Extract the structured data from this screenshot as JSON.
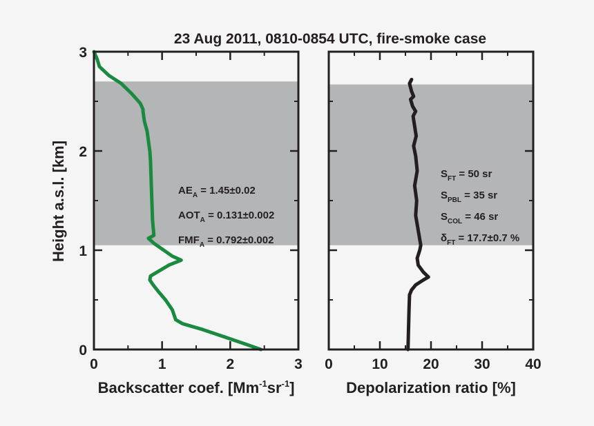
{
  "title": "23 Aug 2011, 0810-0854 UTC, fire-smoke case",
  "ylabel": "Height a.s.l.  [km]",
  "chart_data": [
    {
      "type": "line",
      "panel": "left",
      "xlabel_main": "Backscatter coef. [Mm",
      "xlabel_sup1": "-1",
      "xlabel_mid": "sr",
      "xlabel_sup2": "-1",
      "xlabel_end": "]",
      "xlim": [
        0,
        3
      ],
      "ylim": [
        0,
        3
      ],
      "xticks": [
        "0",
        "1",
        "2",
        "3"
      ],
      "yticks": [
        "0",
        "1",
        "2",
        "3"
      ],
      "shaded_height_range": [
        1.05,
        2.7
      ],
      "series": [
        {
          "color": "#1a8a40",
          "x": [
            2.45,
            2.2,
            1.9,
            1.6,
            1.3,
            1.2,
            1.15,
            1.05,
            0.95,
            0.87,
            0.82,
            0.83,
            1.1,
            1.28,
            1.15,
            0.88,
            0.8,
            0.88,
            0.86,
            0.85,
            0.84,
            0.83,
            0.82,
            0.8,
            0.78,
            0.74,
            0.72,
            0.72,
            0.68,
            0.55,
            0.4,
            0.22,
            0.08,
            0.05,
            0.0
          ],
          "y": [
            0.0,
            0.06,
            0.13,
            0.2,
            0.26,
            0.3,
            0.4,
            0.5,
            0.58,
            0.65,
            0.7,
            0.74,
            0.85,
            0.9,
            0.94,
            1.07,
            1.12,
            1.15,
            1.3,
            1.5,
            1.7,
            1.9,
            2.0,
            2.1,
            2.2,
            2.3,
            2.4,
            2.42,
            2.48,
            2.58,
            2.68,
            2.76,
            2.85,
            2.92,
            3.0
          ]
        }
      ],
      "annotations": [
        {
          "main": "AE",
          "sub": "A",
          "rest": " = 1.45±0.02"
        },
        {
          "main": "AOT",
          "sub": "A",
          "rest": " = 0.131±0.002"
        },
        {
          "main": "FMF",
          "sub": "A",
          "rest": " = 0.792±0.002"
        }
      ]
    },
    {
      "type": "line",
      "panel": "right",
      "xlabel": "Depolarization ratio [%]",
      "xlim": [
        0,
        40
      ],
      "ylim": [
        0,
        3
      ],
      "xticks": [
        "0",
        "10",
        "20",
        "30",
        "40"
      ],
      "shaded_height_range": [
        1.05,
        2.67
      ],
      "series": [
        {
          "color": "#231f20",
          "x": [
            15.5,
            15.6,
            15.7,
            15.8,
            16.2,
            17.0,
            18.5,
            19.5,
            18.5,
            17.5,
            17.3,
            17.8,
            18.0,
            17.5,
            17.0,
            17.2,
            16.8,
            17.3,
            17.0,
            16.6,
            17.1,
            16.8,
            16.5,
            17.0,
            16.4,
            16.0,
            16.6,
            16.2,
            16.0,
            15.8,
            16.2
          ],
          "y": [
            0.0,
            0.2,
            0.4,
            0.55,
            0.6,
            0.65,
            0.7,
            0.73,
            0.78,
            0.85,
            0.92,
            1.0,
            1.05,
            1.2,
            1.35,
            1.5,
            1.65,
            1.8,
            1.95,
            2.05,
            2.15,
            2.25,
            2.35,
            2.4,
            2.45,
            2.52,
            2.55,
            2.6,
            2.64,
            2.68,
            2.72
          ]
        }
      ],
      "annotations": [
        {
          "main": "S",
          "sub": "FT",
          "rest": " = 50 sr"
        },
        {
          "main": "S",
          "sub": "PBL",
          "rest": " = 35 sr"
        },
        {
          "main": "S",
          "sub": "COL",
          "rest": " = 46 sr"
        },
        {
          "main": "δ",
          "sub": "FT",
          "rest": " = 17.7±0.7 %"
        }
      ]
    }
  ]
}
